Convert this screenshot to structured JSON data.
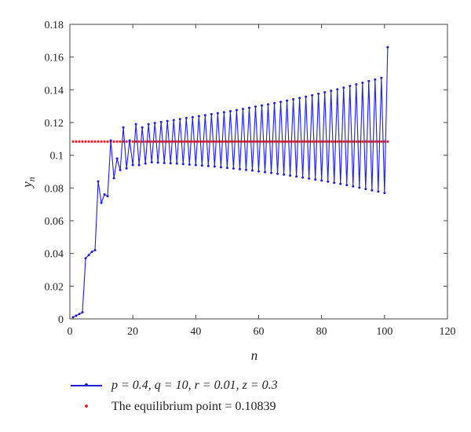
{
  "chart_data": {
    "type": "line",
    "xlabel": "n",
    "ylabel": "y",
    "ylabel_sub": "n",
    "xlim": [
      0,
      120
    ],
    "ylim": [
      0,
      0.18
    ],
    "x_ticks": [
      "0",
      "20",
      "40",
      "60",
      "80",
      "100",
      "120"
    ],
    "y_ticks": [
      "0",
      "0.02",
      "0.04",
      "0.06",
      "0.08",
      "0.1",
      "0.12",
      "0.14",
      "0.16",
      "0.18"
    ],
    "series": [
      {
        "name": "p = 0.4, q = 10, r = 0.01, z = 0.3",
        "color": "#1f1fd6",
        "x": [
          1,
          2,
          3,
          4,
          5,
          6,
          7,
          8,
          9,
          10,
          11,
          12,
          13,
          14,
          15,
          16,
          17,
          18,
          19,
          20,
          21,
          22,
          23,
          24,
          25,
          26,
          27,
          28,
          29,
          30,
          31,
          32,
          33,
          34,
          35,
          36,
          37,
          38,
          39,
          40,
          41,
          42,
          43,
          44,
          45,
          46,
          47,
          48,
          49,
          50,
          51,
          52,
          53,
          54,
          55,
          56,
          57,
          58,
          59,
          60,
          61,
          62,
          63,
          64,
          65,
          66,
          67,
          68,
          69,
          70,
          71,
          72,
          73,
          74,
          75,
          76,
          77,
          78,
          79,
          80,
          81,
          82,
          83,
          84,
          85,
          86,
          87,
          88,
          89,
          90,
          91,
          92,
          93,
          94,
          95,
          96,
          97,
          98,
          99,
          100,
          101
        ],
        "y": [
          0.001,
          0.002,
          0.003,
          0.004,
          0.037,
          0.039,
          0.041,
          0.042,
          0.084,
          0.071,
          0.076,
          0.075,
          0.109,
          0.086,
          0.098,
          0.091,
          0.117,
          0.092,
          0.109,
          0.094,
          0.119,
          0.094,
          0.117,
          0.095,
          0.119,
          0.0957,
          0.1197,
          0.0955,
          0.1203,
          0.0953,
          0.1209,
          0.0951,
          0.1215,
          0.0949,
          0.1221,
          0.0946,
          0.1227,
          0.0943,
          0.1233,
          0.094,
          0.1239,
          0.0937,
          0.1245,
          0.0934,
          0.1251,
          0.0931,
          0.1257,
          0.0927,
          0.1263,
          0.0923,
          0.1269,
          0.0919,
          0.1276,
          0.0915,
          0.1283,
          0.0911,
          0.129,
          0.0907,
          0.1297,
          0.0902,
          0.1304,
          0.0897,
          0.1311,
          0.0892,
          0.1318,
          0.0887,
          0.1326,
          0.0882,
          0.1334,
          0.0876,
          0.1342,
          0.087,
          0.135,
          0.0864,
          0.1358,
          0.0858,
          0.1367,
          0.0852,
          0.1376,
          0.0846,
          0.1385,
          0.0839,
          0.1394,
          0.0832,
          0.1403,
          0.0825,
          0.1413,
          0.0818,
          0.1423,
          0.081,
          0.1433,
          0.0802,
          0.1443,
          0.0794,
          0.1453,
          0.0786,
          0.1463,
          0.0778,
          0.1473,
          0.077,
          0.166
        ]
      },
      {
        "name": "The equilibrium point = 0.10839",
        "color": "#e8222a",
        "style": "dots",
        "x_start": 1,
        "x_end": 101,
        "value": 0.10839
      }
    ],
    "legend_placement": "below"
  }
}
